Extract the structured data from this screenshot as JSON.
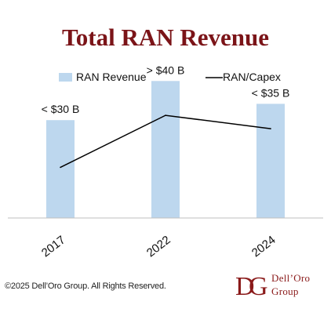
{
  "title": "Total RAN Revenue",
  "chart_data": {
    "type": "bar",
    "categories": [
      "2017",
      "2022",
      "2024"
    ],
    "series": [
      {
        "name": "RAN Revenue",
        "type": "bar",
        "values": [
          30,
          42,
          35
        ],
        "labels": [
          "< $30 B",
          "> $40 B",
          "< $35 B"
        ],
        "color": "#bdd7ee"
      },
      {
        "name": "RAN/Capex",
        "type": "line",
        "values": [
          0.38,
          0.77,
          0.67
        ],
        "color": "#000000"
      }
    ],
    "legend_position": "top",
    "grid": false,
    "ylim": [
      0,
      50
    ],
    "line_ylim": [
      0,
      1
    ]
  },
  "footer": {
    "copyright": "©2025 Dell’Oro Group. All Rights Reserved.",
    "logo_line1": "Dell’Oro",
    "logo_line2": "Group",
    "logo_color": "#8a1a1a"
  }
}
